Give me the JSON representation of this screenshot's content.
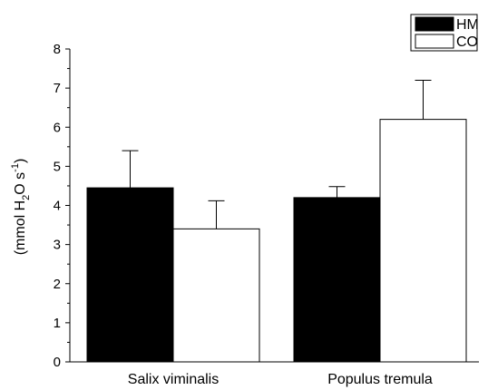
{
  "chart_data": {
    "type": "bar",
    "ylabel_parts": {
      "pre": "(mmol H",
      "sub": "2",
      "mid": "O s",
      "sup": "-1",
      "post": ")"
    },
    "xlabel": "",
    "categories": [
      "Salix viminalis",
      "Populus tremula"
    ],
    "series": [
      {
        "name": "HM",
        "values": [
          4.45,
          4.2
        ],
        "errors": [
          0.95,
          0.28
        ],
        "color": "#000000"
      },
      {
        "name": "CO",
        "values": [
          3.4,
          6.2
        ],
        "errors": [
          0.72,
          1.0
        ],
        "color": "#ffffff"
      }
    ],
    "ylim": [
      0,
      8
    ],
    "yticks": [
      0,
      1,
      2,
      3,
      4,
      5,
      6,
      7,
      8
    ],
    "grid": false,
    "legend_position": "top-right"
  }
}
